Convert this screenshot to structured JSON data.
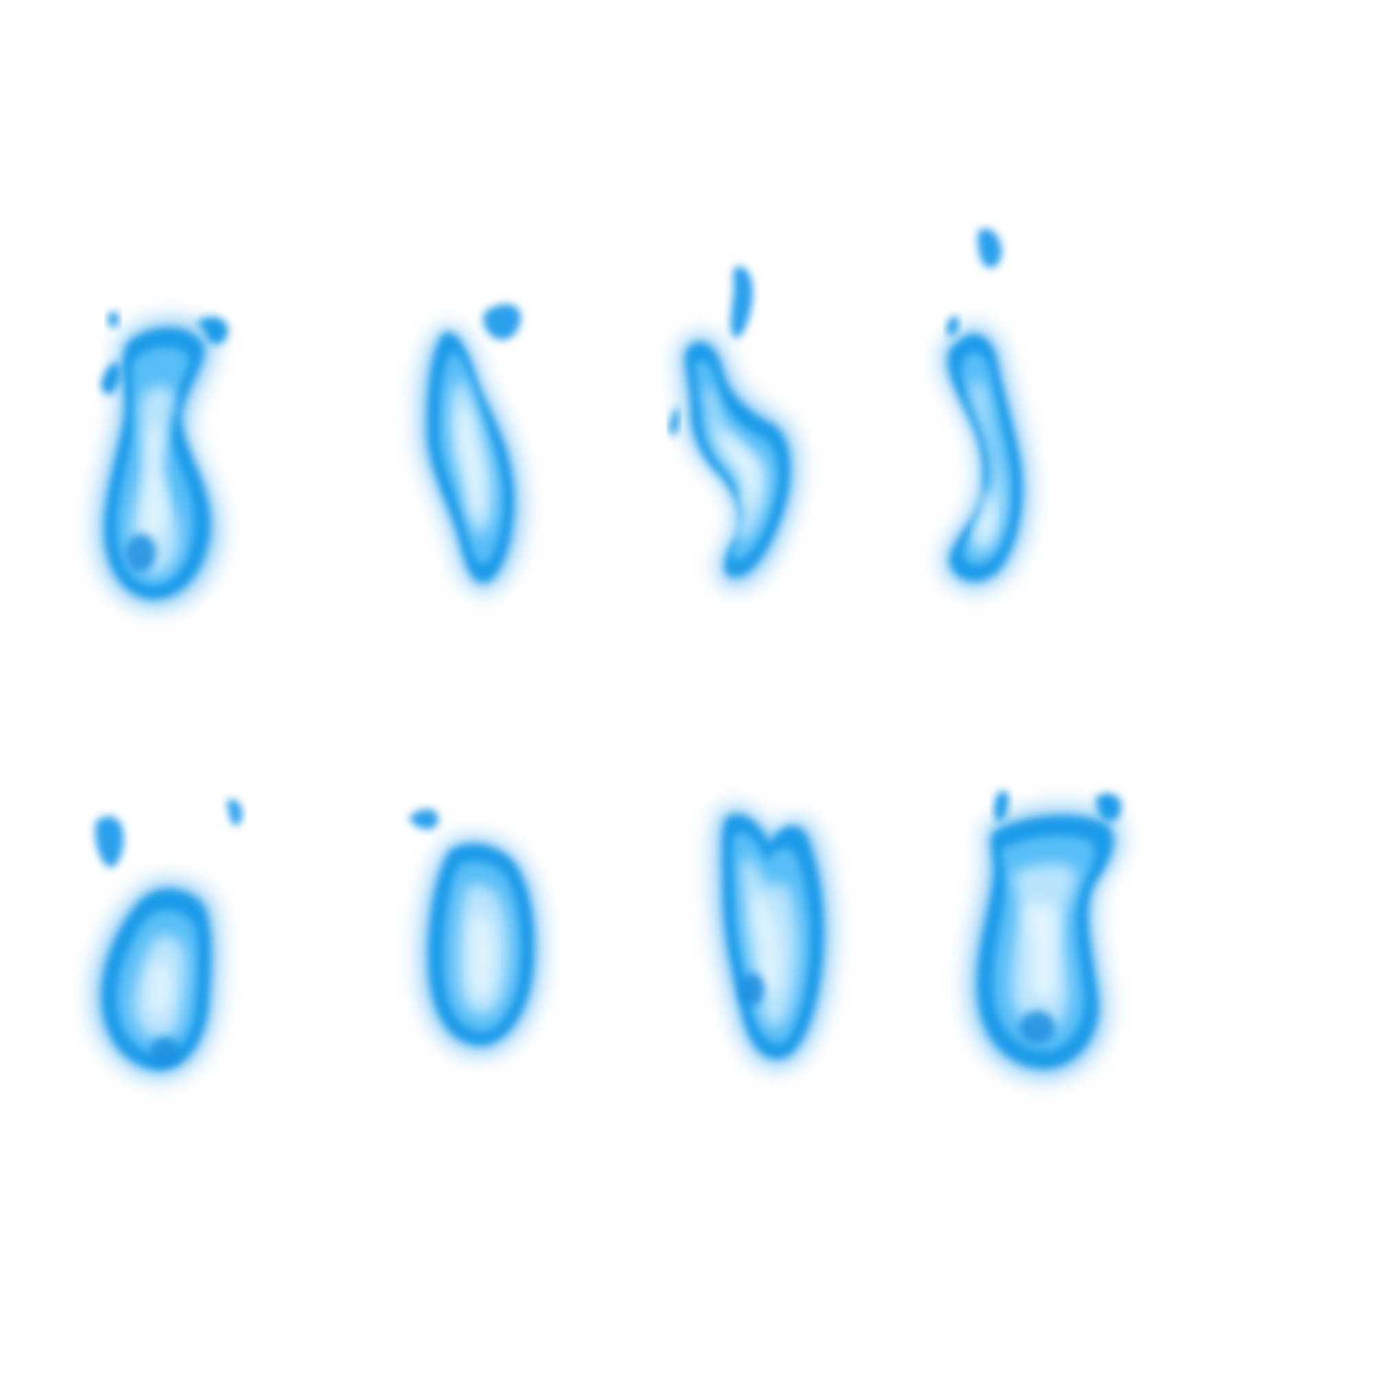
{
  "sprite_sheet": {
    "background": "#ffffff",
    "colors": {
      "glow": "#2ea3ee",
      "outer": "#1f9be9",
      "mid": "#56bdf6",
      "core": "#bfe6fd",
      "hot": "#e4f6ff"
    },
    "frames": [
      {
        "name": "flame-frame-1",
        "icon": "blue-flame-icon",
        "pose": "lean-right-hook-top"
      },
      {
        "name": "flame-frame-2",
        "icon": "blue-flame-icon",
        "pose": "lean-left-sparks"
      },
      {
        "name": "flame-frame-3",
        "icon": "blue-flame-icon",
        "pose": "s-curve"
      },
      {
        "name": "flame-frame-4",
        "icon": "blue-flame-icon",
        "pose": "thin-curve"
      },
      {
        "name": "flame-frame-5",
        "icon": "blue-flame-icon",
        "pose": "upright-sparks"
      },
      {
        "name": "flame-frame-6",
        "icon": "blue-flame-icon",
        "pose": "upright-round"
      },
      {
        "name": "flame-frame-7",
        "icon": "blue-flame-icon",
        "pose": "upright-forked"
      },
      {
        "name": "flame-frame-8",
        "icon": "blue-flame-icon",
        "pose": "lean-right-hook-top"
      }
    ]
  }
}
